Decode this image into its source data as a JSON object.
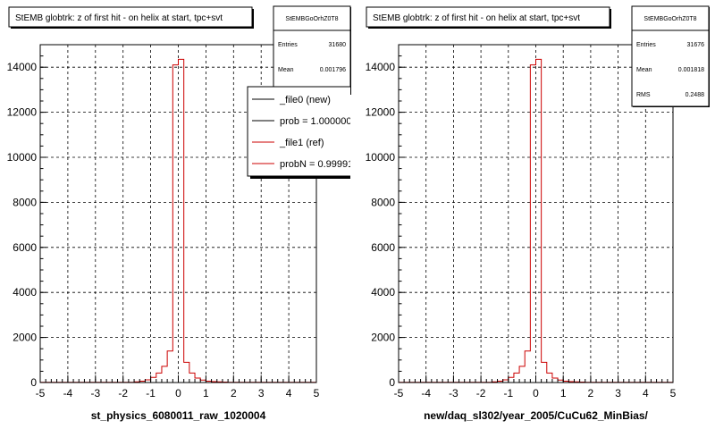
{
  "footer_text": "",
  "chart_data": [
    {
      "type": "histogram",
      "title": "StEMB globtrk: z of first hit - on helix at start, tpc+svt",
      "xlabel": "st_physics_6080011_raw_1020004",
      "xlim": [
        -5,
        5
      ],
      "ylim": [
        0,
        15000
      ],
      "xticks": [
        "-5",
        "-4",
        "-3",
        "-2",
        "-1",
        "0",
        "1",
        "2",
        "3",
        "4",
        "5"
      ],
      "yticks": [
        "0",
        "2000",
        "4000",
        "6000",
        "8000",
        "10000",
        "12000",
        "14000"
      ],
      "grid": true,
      "stats": {
        "name": "StEMBGoOrhZ0T8",
        "rows": [
          {
            "label": "Entries",
            "value": "31680"
          },
          {
            "label": "Mean",
            "value": "0.001796"
          }
        ]
      },
      "legend": [
        {
          "label": "_file0 (new)",
          "color": "#000000"
        },
        {
          "label": "prob = 1.000000",
          "color": "#000000"
        },
        {
          "label": "_file1 (ref)",
          "color": "#cc0000"
        },
        {
          "label": "probN = 0.99991",
          "color": "#cc0000"
        }
      ],
      "bin_width": 0.2,
      "bins": [
        {
          "x0": -1.6,
          "v": 30
        },
        {
          "x0": -1.4,
          "v": 60
        },
        {
          "x0": -1.2,
          "v": 120
        },
        {
          "x0": -1.0,
          "v": 230
        },
        {
          "x0": -0.8,
          "v": 420
        },
        {
          "x0": -0.6,
          "v": 720
        },
        {
          "x0": -0.4,
          "v": 1400
        },
        {
          "x0": -0.2,
          "v": 14100
        },
        {
          "x0": 0.0,
          "v": 14350
        },
        {
          "x0": 0.2,
          "v": 900
        },
        {
          "x0": 0.4,
          "v": 420
        },
        {
          "x0": 0.6,
          "v": 200
        },
        {
          "x0": 0.8,
          "v": 110
        },
        {
          "x0": 1.0,
          "v": 60
        },
        {
          "x0": 1.2,
          "v": 40
        },
        {
          "x0": 1.4,
          "v": 30
        },
        {
          "x0": 1.6,
          "v": 20
        }
      ],
      "baseline": 10
    },
    {
      "type": "histogram",
      "title": "StEMB globtrk: z of first hit - on helix at start, tpc+svt",
      "xlabel": "new/daq_sl302/year_2005/CuCu62_MinBias/",
      "xlim": [
        -5,
        5
      ],
      "ylim": [
        0,
        15000
      ],
      "xticks": [
        "-5",
        "-4",
        "-3",
        "-2",
        "-1",
        "0",
        "1",
        "2",
        "3",
        "4",
        "5"
      ],
      "yticks": [
        "0",
        "2000",
        "4000",
        "6000",
        "8000",
        "10000",
        "12000",
        "14000"
      ],
      "grid": true,
      "stats": {
        "name": "StEMBGoOrhZ0T8",
        "rows": [
          {
            "label": "Entries",
            "value": "31676"
          },
          {
            "label": "Mean",
            "value": "0.001818"
          },
          {
            "label": "RMS",
            "value": "0.2488"
          }
        ]
      },
      "legend": [],
      "bin_width": 0.2,
      "bins": [
        {
          "x0": -1.6,
          "v": 30
        },
        {
          "x0": -1.4,
          "v": 60
        },
        {
          "x0": -1.2,
          "v": 120
        },
        {
          "x0": -1.0,
          "v": 230
        },
        {
          "x0": -0.8,
          "v": 420
        },
        {
          "x0": -0.6,
          "v": 720
        },
        {
          "x0": -0.4,
          "v": 1400
        },
        {
          "x0": -0.2,
          "v": 14100
        },
        {
          "x0": 0.0,
          "v": 14350
        },
        {
          "x0": 0.2,
          "v": 900
        },
        {
          "x0": 0.4,
          "v": 420
        },
        {
          "x0": 0.6,
          "v": 200
        },
        {
          "x0": 0.8,
          "v": 110
        },
        {
          "x0": 1.0,
          "v": 60
        },
        {
          "x0": 1.2,
          "v": 40
        },
        {
          "x0": 1.4,
          "v": 30
        },
        {
          "x0": 1.6,
          "v": 20
        }
      ],
      "baseline": 10
    }
  ]
}
